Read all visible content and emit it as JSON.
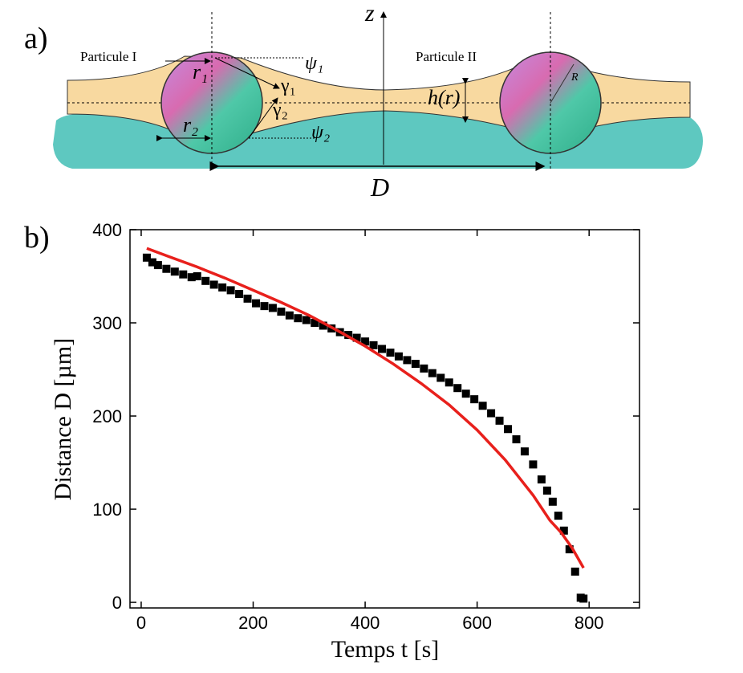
{
  "panel_a": {
    "label": "a)",
    "particle_1": "Particule I",
    "particle_2": "Particule II",
    "z": "z",
    "r1": "r₁",
    "r2": "r₂",
    "psi1": "ψ₁",
    "gamma1": "γ₁",
    "gamma2": "γ₂",
    "psi2": "ψ₂",
    "h": "h(r)",
    "R": "R",
    "D": "D"
  },
  "chart_data": {
    "type": "scatter",
    "label": "b)",
    "x_label": "Temps t [s]",
    "y_label": "Distance D [µm]",
    "xlim": [
      -20,
      890
    ],
    "xticks": [
      0,
      200,
      400,
      600,
      800
    ],
    "ylim": [
      -6,
      400
    ],
    "yticks": [
      0,
      100,
      200,
      300,
      400
    ],
    "series": [
      {
        "color": "#000000",
        "mode": "markers",
        "x": [
          10,
          20,
          30,
          45,
          60,
          75,
          90,
          100,
          115,
          130,
          145,
          160,
          175,
          190,
          205,
          220,
          235,
          250,
          265,
          280,
          295,
          310,
          325,
          340,
          355,
          370,
          385,
          400,
          415,
          430,
          445,
          460,
          475,
          490,
          505,
          520,
          535,
          550,
          565,
          580,
          595,
          610,
          625,
          640,
          655,
          670,
          685,
          700,
          715,
          725,
          735,
          745,
          755,
          765,
          775,
          785,
          790
        ],
        "values": [
          370,
          365,
          362,
          358,
          355,
          352,
          349,
          350,
          345,
          341,
          338,
          335,
          331,
          326,
          321,
          318,
          316,
          312,
          308,
          305,
          303,
          300,
          297,
          294,
          290,
          287,
          284,
          280,
          276,
          272,
          268,
          264,
          260,
          256,
          251,
          246,
          241,
          236,
          230,
          224,
          218,
          211,
          203,
          195,
          186,
          175,
          162,
          148,
          132,
          120,
          108,
          93,
          77,
          57,
          33,
          5,
          4
        ]
      },
      {
        "color": "#e8201c",
        "mode": "line",
        "x": [
          10,
          50,
          100,
          150,
          200,
          250,
          300,
          350,
          400,
          450,
          500,
          550,
          600,
          650,
          700,
          730,
          750,
          770,
          790
        ],
        "values": [
          380,
          371,
          360,
          348,
          335,
          322,
          308,
          292,
          275,
          256,
          235,
          212,
          185,
          153,
          115,
          88,
          75,
          58,
          37
        ]
      }
    ]
  }
}
